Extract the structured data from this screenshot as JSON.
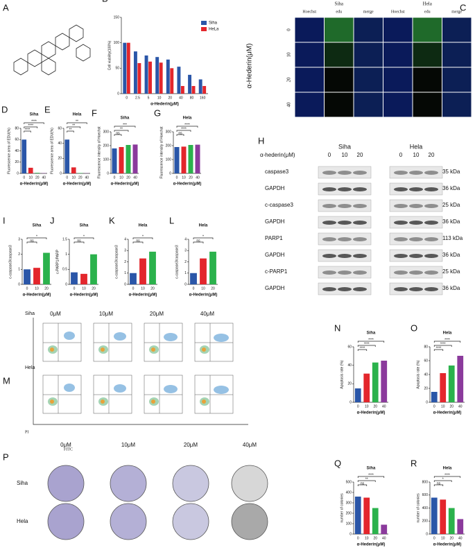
{
  "chart_data": [
    {
      "type": "bar",
      "panel": "B",
      "ylabel": "Cell viability(100%)",
      "xlabel": "α-Hederin(μM)",
      "categories": [
        "0",
        "2.5",
        "5",
        "10",
        "20",
        "40",
        "80",
        "160"
      ],
      "series": [
        {
          "name": "Siha",
          "color": "#2a56a8",
          "values": [
            100,
            83,
            75,
            72,
            67,
            53,
            37,
            28
          ]
        },
        {
          "name": "HeLa",
          "color": "#e3262c",
          "values": [
            100,
            60,
            63,
            61,
            50,
            15,
            15,
            15
          ]
        }
      ],
      "ylim": [
        0,
        150
      ],
      "yticks": [
        0,
        50,
        100,
        150
      ],
      "legend": "upper right"
    },
    {
      "type": "bar",
      "panel": "D",
      "title": "Siha",
      "ylabel": "Fluorescence area of EDU(%)",
      "xlabel": "α-Hederin(μM)",
      "categories": [
        "0",
        "10",
        "20",
        "40"
      ],
      "values": [
        60,
        10,
        1,
        0.5
      ],
      "colors": [
        "#2a56a8",
        "#e3262c",
        "#2bb24c",
        "#8b3a9c"
      ],
      "ylim": [
        0,
        80
      ],
      "yticks": [
        0,
        20,
        40,
        60,
        80
      ],
      "annotations": [
        "****",
        "****",
        "****"
      ]
    },
    {
      "type": "bar",
      "panel": "E",
      "title": "Hela",
      "ylabel": "Fluorescence area of EDU(%)",
      "xlabel": "α-Hederin(μM)",
      "categories": [
        "0",
        "10",
        "20",
        "40"
      ],
      "values": [
        45,
        8,
        0.5,
        0.3
      ],
      "colors": [
        "#2a56a8",
        "#e3262c",
        "#2bb24c",
        "#8b3a9c"
      ],
      "ylim": [
        0,
        60
      ],
      "yticks": [
        0,
        20,
        40,
        60
      ],
      "annotations": [
        "**",
        "**",
        "**"
      ]
    },
    {
      "type": "bar",
      "panel": "F",
      "title": "Siha",
      "ylabel": "Fluorescence intensity of Hoechst",
      "xlabel": "α-Hederin(μM)",
      "categories": [
        "0",
        "10",
        "20",
        "40"
      ],
      "values": [
        180,
        190,
        205,
        208
      ],
      "colors": [
        "#2a56a8",
        "#e3262c",
        "#2bb24c",
        "#8b3a9c"
      ],
      "ylim": [
        0,
        300
      ],
      "yticks": [
        0,
        100,
        200,
        300
      ],
      "annotations": [
        "ns",
        "**",
        "***"
      ]
    },
    {
      "type": "bar",
      "panel": "G",
      "title": "Hela",
      "ylabel": "Fluorescence intensity of Hoechst",
      "xlabel": "α-Hederin(μM)",
      "categories": [
        "0",
        "10",
        "20",
        "40"
      ],
      "values": [
        190,
        193,
        205,
        207
      ],
      "colors": [
        "#2a56a8",
        "#e3262c",
        "#2bb24c",
        "#8b3a9c"
      ],
      "ylim": [
        0,
        300
      ],
      "yticks": [
        0,
        100,
        200,
        300
      ],
      "annotations": [
        "ns",
        "****",
        "****"
      ]
    },
    {
      "type": "bar",
      "panel": "I",
      "title": "Siha",
      "ylabel": "c-caspase3/caspase3",
      "xlabel": "α-Hederin(μM)",
      "categories": [
        "0",
        "10",
        "20"
      ],
      "values": [
        1.0,
        1.1,
        2.1
      ],
      "colors": [
        "#2a56a8",
        "#e3262c",
        "#2bb24c"
      ],
      "ylim": [
        0,
        3
      ],
      "yticks": [
        0,
        1,
        2,
        3
      ],
      "annotations": [
        "ns",
        "*"
      ]
    },
    {
      "type": "bar",
      "panel": "J",
      "title": "Siha",
      "ylabel": "c-PARP1/PARP",
      "xlabel": "α-Hederin(μM)",
      "categories": [
        "0",
        "10",
        "20"
      ],
      "values": [
        0.4,
        0.35,
        1.0
      ],
      "colors": [
        "#2a56a8",
        "#e3262c",
        "#2bb24c"
      ],
      "ylim": [
        0,
        1.5
      ],
      "yticks": [
        0,
        0.5,
        1,
        1.5
      ],
      "annotations": [
        "ns",
        "*"
      ]
    },
    {
      "type": "bar",
      "panel": "K",
      "title": "Hela",
      "ylabel": "c-caspase3/caspase3",
      "xlabel": "α-Hederin(μM)",
      "categories": [
        "0",
        "10",
        "20"
      ],
      "values": [
        1.0,
        2.3,
        2.9
      ],
      "colors": [
        "#2a56a8",
        "#e3262c",
        "#2bb24c"
      ],
      "ylim": [
        0,
        4
      ],
      "yticks": [
        0,
        1,
        2,
        3,
        4
      ],
      "annotations": [
        "ns",
        "*"
      ]
    },
    {
      "type": "bar",
      "panel": "L",
      "title": "Hela",
      "ylabel": "c-caspase3/caspase3",
      "xlabel": "α-Hederin(μM)",
      "categories": [
        "0",
        "10",
        "20"
      ],
      "values": [
        1.0,
        2.3,
        2.9
      ],
      "colors": [
        "#2a56a8",
        "#e3262c",
        "#2bb24c"
      ],
      "ylim": [
        0,
        4
      ],
      "yticks": [
        0,
        1,
        2,
        3,
        4
      ],
      "annotations": [
        "ns",
        "*"
      ]
    },
    {
      "type": "bar",
      "panel": "N",
      "title": "Siha",
      "ylabel": "Apoptosis rate (%)",
      "xlabel": "α-Hederin(μM)",
      "categories": [
        "0",
        "10",
        "20",
        "40"
      ],
      "values": [
        15,
        31,
        43,
        45
      ],
      "colors": [
        "#2a56a8",
        "#e3262c",
        "#2bb24c",
        "#8b3a9c"
      ],
      "ylim": [
        0,
        60
      ],
      "yticks": [
        0,
        20,
        40,
        60
      ],
      "annotations": [
        "****",
        "****",
        "****"
      ]
    },
    {
      "type": "bar",
      "panel": "O",
      "title": "Hela",
      "ylabel": "Apoptosis rate (%)",
      "xlabel": "α-Hederin(μM)",
      "categories": [
        "0",
        "10",
        "20",
        "40"
      ],
      "values": [
        15,
        42,
        53,
        67
      ],
      "colors": [
        "#2a56a8",
        "#e3262c",
        "#2bb24c",
        "#8b3a9c"
      ],
      "ylim": [
        0,
        80
      ],
      "yticks": [
        0,
        20,
        40,
        60,
        80
      ],
      "annotations": [
        "****",
        "****",
        "****"
      ]
    },
    {
      "type": "bar",
      "panel": "Q",
      "title": "Siha",
      "ylabel": "number of colonies",
      "xlabel": "α-Hederin(μM)",
      "categories": [
        "0",
        "10",
        "20",
        "40"
      ],
      "values": [
        360,
        350,
        250,
        90
      ],
      "colors": [
        "#2a56a8",
        "#e3262c",
        "#2bb24c",
        "#8b3a9c"
      ],
      "ylim": [
        0,
        500
      ],
      "yticks": [
        0,
        100,
        200,
        300,
        400,
        500
      ],
      "annotations": [
        "ns",
        "**",
        "****"
      ]
    },
    {
      "type": "bar",
      "panel": "R",
      "title": "Hela",
      "ylabel": "number of colonies",
      "xlabel": "α-Hederin(μM)",
      "categories": [
        "0",
        "10",
        "20",
        "40"
      ],
      "values": [
        560,
        530,
        400,
        230
      ],
      "colors": [
        "#2a56a8",
        "#e3262c",
        "#2bb24c",
        "#8b3a9c"
      ],
      "ylim": [
        0,
        800
      ],
      "yticks": [
        0,
        200,
        400,
        600,
        800
      ],
      "annotations": [
        "ns",
        "*",
        "****"
      ]
    }
  ],
  "structure": {
    "panel": "A"
  },
  "microscopy": {
    "panel": "C",
    "cell_lines": [
      "Siha",
      "Hela"
    ],
    "stains": [
      "Hoechst",
      "edu",
      "merge"
    ],
    "doses": [
      "0",
      "10",
      "20",
      "40"
    ],
    "ylabel": "α-Hederin(μM)"
  },
  "western_blot": {
    "panel": "H",
    "header": "α-hederin(μM)",
    "cell_lines": [
      "Siha",
      "Hela"
    ],
    "doses": [
      "0",
      "10",
      "20"
    ],
    "rows": [
      "caspase3",
      "GAPDH",
      "c-caspase3",
      "GAPDH",
      "PARP1",
      "GAPDH",
      "c-PARP1",
      "GAPDH"
    ],
    "sizes": [
      "35 kDa",
      "36 kDa",
      "25 kDa",
      "36 kDa",
      "113 kDa",
      "36 kDa",
      "25 kDa",
      "36 kDa"
    ]
  },
  "flow": {
    "panel": "M",
    "cell_lines": [
      "Siha",
      "Hela"
    ],
    "doses": [
      "0μM",
      "10μM",
      "20μM",
      "40μM"
    ],
    "ylabel": "PI",
    "xlabel": "FITC"
  },
  "colony": {
    "panel": "P",
    "cell_lines": [
      "Siha",
      "Hela"
    ],
    "doses": [
      "0μM",
      "10μM",
      "20μM",
      "40μM"
    ]
  }
}
